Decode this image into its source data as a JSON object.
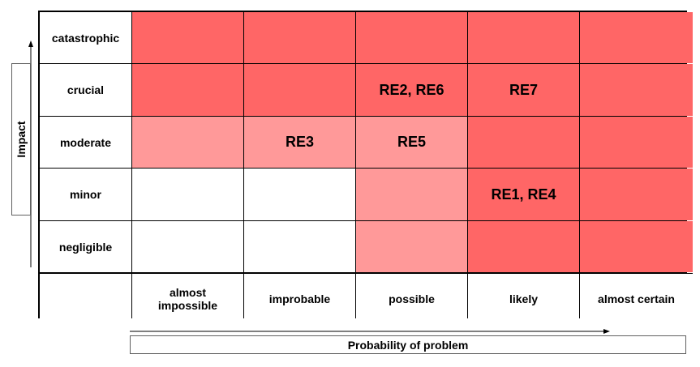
{
  "y_axis": {
    "label": "Impact"
  },
  "x_axis": {
    "label": "Probability of problem"
  },
  "impact_levels": [
    "catastrophic",
    "crucial",
    "moderate",
    "minor",
    "negligible"
  ],
  "probability_levels": [
    "almost impossible",
    "improbable",
    "possible",
    "likely",
    "almost certain"
  ],
  "cells": [
    [
      {
        "text": "",
        "level": "high"
      },
      {
        "text": "",
        "level": "high"
      },
      {
        "text": "",
        "level": "high"
      },
      {
        "text": "",
        "level": "high"
      },
      {
        "text": "",
        "level": "high"
      }
    ],
    [
      {
        "text": "",
        "level": "high"
      },
      {
        "text": "",
        "level": "high"
      },
      {
        "text": "RE2, RE6",
        "level": "high"
      },
      {
        "text": "RE7",
        "level": "high"
      },
      {
        "text": "",
        "level": "high"
      }
    ],
    [
      {
        "text": "",
        "level": "med"
      },
      {
        "text": "RE3",
        "level": "med"
      },
      {
        "text": "RE5",
        "level": "med"
      },
      {
        "text": "",
        "level": "high"
      },
      {
        "text": "",
        "level": "high"
      }
    ],
    [
      {
        "text": "",
        "level": "low"
      },
      {
        "text": "",
        "level": "low"
      },
      {
        "text": "",
        "level": "med"
      },
      {
        "text": "RE1, RE4",
        "level": "high"
      },
      {
        "text": "",
        "level": "high"
      }
    ],
    [
      {
        "text": "",
        "level": "low"
      },
      {
        "text": "",
        "level": "low"
      },
      {
        "text": "",
        "level": "med"
      },
      {
        "text": "",
        "level": "high"
      },
      {
        "text": "",
        "level": "high"
      }
    ]
  ],
  "colors": {
    "high": "#ff6666",
    "med": "#ff9999",
    "low": "#ffffff"
  }
}
